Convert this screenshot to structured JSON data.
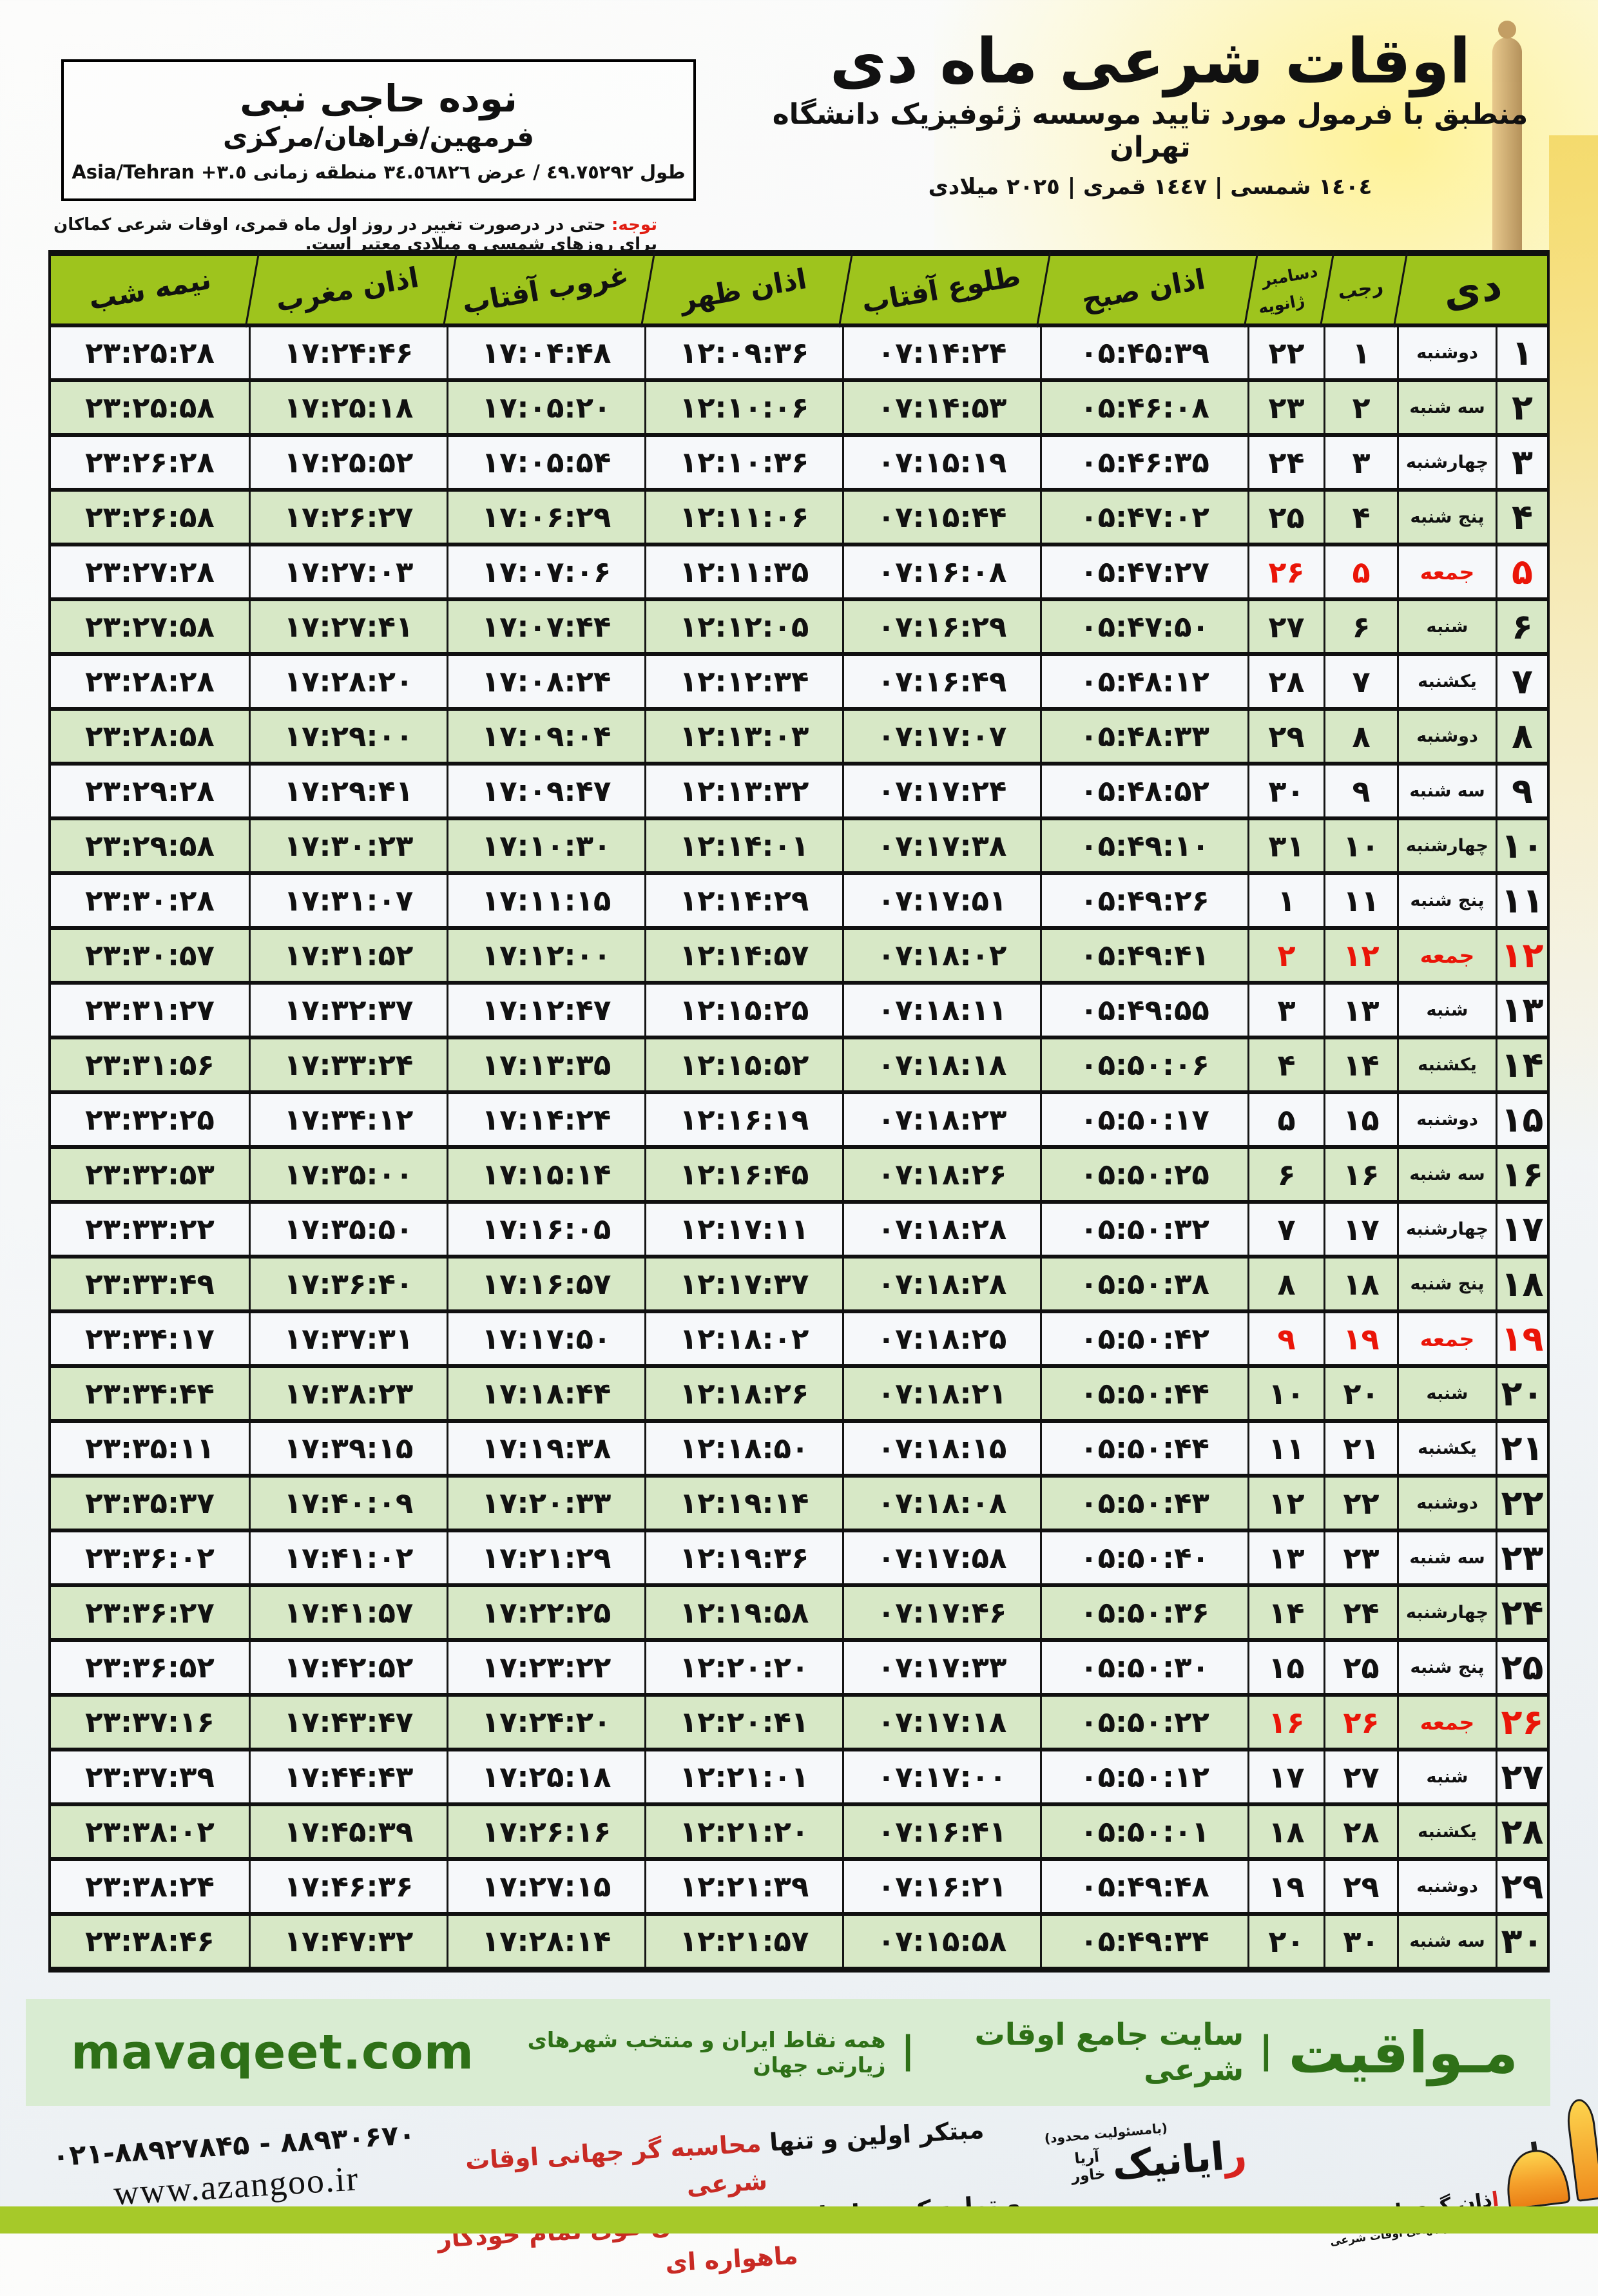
{
  "header": {
    "title": "اوقات شرعی ماه دی",
    "subtitle": "منطبق با فرمول مورد تایید موسسه ژئوفیزیک دانشگاه تهران",
    "years": "١٤٠٤ شمسی | ١٤٤٧ قمری | ٢٠٢٥ میلادی",
    "location": {
      "name": "نوده حاجی نبی",
      "region": "فرمهین/فراهان/مرکزی",
      "coords": "طول ٤٩.٧٥٢٩٢ / عرض ٣٤.٥٦٨٢٦ منطقه زمانی ٣.٥+ Asia/Tehran"
    },
    "notice_label": "توجه:",
    "notice_text": " حتی در درصورت تغییر در روز اول ماه قمری، اوقات شرعی کماکان برای روزهای شمسی و میلادی معتبر است."
  },
  "table": {
    "columns": {
      "day": "دی",
      "rajab": "رجب",
      "greg_top": "دسامبر",
      "greg_bottom": "ژانویه",
      "fajr": "اذان صبح",
      "sunrise": "طلوع آفتاب",
      "dhuhr": "اذان ظهر",
      "sunset": "غروب آفتاب",
      "maghrib": "اذان مغرب",
      "midnight": "نیمه شب"
    },
    "rows": [
      {
        "day": "۱",
        "weekday": "دوشنبه",
        "rajab": "۱",
        "greg": "۲۲",
        "fajr": "۰۵:۴۵:۳۹",
        "sunrise": "۰۷:۱۴:۲۴",
        "dhuhr": "۱۲:۰۹:۳۶",
        "sunset": "۱۷:۰۴:۴۸",
        "maghrib": "۱۷:۲۴:۴۶",
        "midnight": "۲۳:۲۵:۲۸",
        "friday": false
      },
      {
        "day": "۲",
        "weekday": "سه شنبه",
        "rajab": "۲",
        "greg": "۲۳",
        "fajr": "۰۵:۴۶:۰۸",
        "sunrise": "۰۷:۱۴:۵۳",
        "dhuhr": "۱۲:۱۰:۰۶",
        "sunset": "۱۷:۰۵:۲۰",
        "maghrib": "۱۷:۲۵:۱۸",
        "midnight": "۲۳:۲۵:۵۸",
        "friday": false
      },
      {
        "day": "۳",
        "weekday": "چهارشنبه",
        "rajab": "۳",
        "greg": "۲۴",
        "fajr": "۰۵:۴۶:۳۵",
        "sunrise": "۰۷:۱۵:۱۹",
        "dhuhr": "۱۲:۱۰:۳۶",
        "sunset": "۱۷:۰۵:۵۴",
        "maghrib": "۱۷:۲۵:۵۲",
        "midnight": "۲۳:۲۶:۲۸",
        "friday": false
      },
      {
        "day": "۴",
        "weekday": "پنج شنبه",
        "rajab": "۴",
        "greg": "۲۵",
        "fajr": "۰۵:۴۷:۰۲",
        "sunrise": "۰۷:۱۵:۴۴",
        "dhuhr": "۱۲:۱۱:۰۶",
        "sunset": "۱۷:۰۶:۲۹",
        "maghrib": "۱۷:۲۶:۲۷",
        "midnight": "۲۳:۲۶:۵۸",
        "friday": false
      },
      {
        "day": "۵",
        "weekday": "جمعه",
        "rajab": "۵",
        "greg": "۲۶",
        "fajr": "۰۵:۴۷:۲۷",
        "sunrise": "۰۷:۱۶:۰۸",
        "dhuhr": "۱۲:۱۱:۳۵",
        "sunset": "۱۷:۰۷:۰۶",
        "maghrib": "۱۷:۲۷:۰۳",
        "midnight": "۲۳:۲۷:۲۸",
        "friday": true
      },
      {
        "day": "۶",
        "weekday": "شنبه",
        "rajab": "۶",
        "greg": "۲۷",
        "fajr": "۰۵:۴۷:۵۰",
        "sunrise": "۰۷:۱۶:۲۹",
        "dhuhr": "۱۲:۱۲:۰۵",
        "sunset": "۱۷:۰۷:۴۴",
        "maghrib": "۱۷:۲۷:۴۱",
        "midnight": "۲۳:۲۷:۵۸",
        "friday": false
      },
      {
        "day": "۷",
        "weekday": "یکشنبه",
        "rajab": "۷",
        "greg": "۲۸",
        "fajr": "۰۵:۴۸:۱۲",
        "sunrise": "۰۷:۱۶:۴۹",
        "dhuhr": "۱۲:۱۲:۳۴",
        "sunset": "۱۷:۰۸:۲۴",
        "maghrib": "۱۷:۲۸:۲۰",
        "midnight": "۲۳:۲۸:۲۸",
        "friday": false
      },
      {
        "day": "۸",
        "weekday": "دوشنبه",
        "rajab": "۸",
        "greg": "۲۹",
        "fajr": "۰۵:۴۸:۳۳",
        "sunrise": "۰۷:۱۷:۰۷",
        "dhuhr": "۱۲:۱۳:۰۳",
        "sunset": "۱۷:۰۹:۰۴",
        "maghrib": "۱۷:۲۹:۰۰",
        "midnight": "۲۳:۲۸:۵۸",
        "friday": false
      },
      {
        "day": "۹",
        "weekday": "سه شنبه",
        "rajab": "۹",
        "greg": "۳۰",
        "fajr": "۰۵:۴۸:۵۲",
        "sunrise": "۰۷:۱۷:۲۴",
        "dhuhr": "۱۲:۱۳:۳۲",
        "sunset": "۱۷:۰۹:۴۷",
        "maghrib": "۱۷:۲۹:۴۱",
        "midnight": "۲۳:۲۹:۲۸",
        "friday": false
      },
      {
        "day": "۱۰",
        "weekday": "چهارشنبه",
        "rajab": "۱۰",
        "greg": "۳۱",
        "fajr": "۰۵:۴۹:۱۰",
        "sunrise": "۰۷:۱۷:۳۸",
        "dhuhr": "۱۲:۱۴:۰۱",
        "sunset": "۱۷:۱۰:۳۰",
        "maghrib": "۱۷:۳۰:۲۳",
        "midnight": "۲۳:۲۹:۵۸",
        "friday": false
      },
      {
        "day": "۱۱",
        "weekday": "پنج شنبه",
        "rajab": "۱۱",
        "greg": "۱",
        "fajr": "۰۵:۴۹:۲۶",
        "sunrise": "۰۷:۱۷:۵۱",
        "dhuhr": "۱۲:۱۴:۲۹",
        "sunset": "۱۷:۱۱:۱۵",
        "maghrib": "۱۷:۳۱:۰۷",
        "midnight": "۲۳:۳۰:۲۸",
        "friday": false
      },
      {
        "day": "۱۲",
        "weekday": "جمعه",
        "rajab": "۱۲",
        "greg": "۲",
        "fajr": "۰۵:۴۹:۴۱",
        "sunrise": "۰۷:۱۸:۰۲",
        "dhuhr": "۱۲:۱۴:۵۷",
        "sunset": "۱۷:۱۲:۰۰",
        "maghrib": "۱۷:۳۱:۵۲",
        "midnight": "۲۳:۳۰:۵۷",
        "friday": true
      },
      {
        "day": "۱۳",
        "weekday": "شنبه",
        "rajab": "۱۳",
        "greg": "۳",
        "fajr": "۰۵:۴۹:۵۵",
        "sunrise": "۰۷:۱۸:۱۱",
        "dhuhr": "۱۲:۱۵:۲۵",
        "sunset": "۱۷:۱۲:۴۷",
        "maghrib": "۱۷:۳۲:۳۷",
        "midnight": "۲۳:۳۱:۲۷",
        "friday": false
      },
      {
        "day": "۱۴",
        "weekday": "یکشنبه",
        "rajab": "۱۴",
        "greg": "۴",
        "fajr": "۰۵:۵۰:۰۶",
        "sunrise": "۰۷:۱۸:۱۸",
        "dhuhr": "۱۲:۱۵:۵۲",
        "sunset": "۱۷:۱۳:۳۵",
        "maghrib": "۱۷:۳۳:۲۴",
        "midnight": "۲۳:۳۱:۵۶",
        "friday": false
      },
      {
        "day": "۱۵",
        "weekday": "دوشنبه",
        "rajab": "۱۵",
        "greg": "۵",
        "fajr": "۰۵:۵۰:۱۷",
        "sunrise": "۰۷:۱۸:۲۳",
        "dhuhr": "۱۲:۱۶:۱۹",
        "sunset": "۱۷:۱۴:۲۴",
        "maghrib": "۱۷:۳۴:۱۲",
        "midnight": "۲۳:۳۲:۲۵",
        "friday": false
      },
      {
        "day": "۱۶",
        "weekday": "سه شنبه",
        "rajab": "۱۶",
        "greg": "۶",
        "fajr": "۰۵:۵۰:۲۵",
        "sunrise": "۰۷:۱۸:۲۶",
        "dhuhr": "۱۲:۱۶:۴۵",
        "sunset": "۱۷:۱۵:۱۴",
        "maghrib": "۱۷:۳۵:۰۰",
        "midnight": "۲۳:۳۲:۵۳",
        "friday": false
      },
      {
        "day": "۱۷",
        "weekday": "چهارشنبه",
        "rajab": "۱۷",
        "greg": "۷",
        "fajr": "۰۵:۵۰:۳۲",
        "sunrise": "۰۷:۱۸:۲۸",
        "dhuhr": "۱۲:۱۷:۱۱",
        "sunset": "۱۷:۱۶:۰۵",
        "maghrib": "۱۷:۳۵:۵۰",
        "midnight": "۲۳:۳۳:۲۲",
        "friday": false
      },
      {
        "day": "۱۸",
        "weekday": "پنج شنبه",
        "rajab": "۱۸",
        "greg": "۸",
        "fajr": "۰۵:۵۰:۳۸",
        "sunrise": "۰۷:۱۸:۲۸",
        "dhuhr": "۱۲:۱۷:۳۷",
        "sunset": "۱۷:۱۶:۵۷",
        "maghrib": "۱۷:۳۶:۴۰",
        "midnight": "۲۳:۳۳:۴۹",
        "friday": false
      },
      {
        "day": "۱۹",
        "weekday": "جمعه",
        "rajab": "۱۹",
        "greg": "۹",
        "fajr": "۰۵:۵۰:۴۲",
        "sunrise": "۰۷:۱۸:۲۵",
        "dhuhr": "۱۲:۱۸:۰۲",
        "sunset": "۱۷:۱۷:۵۰",
        "maghrib": "۱۷:۳۷:۳۱",
        "midnight": "۲۳:۳۴:۱۷",
        "friday": true
      },
      {
        "day": "۲۰",
        "weekday": "شنبه",
        "rajab": "۲۰",
        "greg": "۱۰",
        "fajr": "۰۵:۵۰:۴۴",
        "sunrise": "۰۷:۱۸:۲۱",
        "dhuhr": "۱۲:۱۸:۲۶",
        "sunset": "۱۷:۱۸:۴۴",
        "maghrib": "۱۷:۳۸:۲۳",
        "midnight": "۲۳:۳۴:۴۴",
        "friday": false
      },
      {
        "day": "۲۱",
        "weekday": "یکشنبه",
        "rajab": "۲۱",
        "greg": "۱۱",
        "fajr": "۰۵:۵۰:۴۴",
        "sunrise": "۰۷:۱۸:۱۵",
        "dhuhr": "۱۲:۱۸:۵۰",
        "sunset": "۱۷:۱۹:۳۸",
        "maghrib": "۱۷:۳۹:۱۵",
        "midnight": "۲۳:۳۵:۱۱",
        "friday": false
      },
      {
        "day": "۲۲",
        "weekday": "دوشنبه",
        "rajab": "۲۲",
        "greg": "۱۲",
        "fajr": "۰۵:۵۰:۴۳",
        "sunrise": "۰۷:۱۸:۰۸",
        "dhuhr": "۱۲:۱۹:۱۴",
        "sunset": "۱۷:۲۰:۳۳",
        "maghrib": "۱۷:۴۰:۰۹",
        "midnight": "۲۳:۳۵:۳۷",
        "friday": false
      },
      {
        "day": "۲۳",
        "weekday": "سه شنبه",
        "rajab": "۲۳",
        "greg": "۱۳",
        "fajr": "۰۵:۵۰:۴۰",
        "sunrise": "۰۷:۱۷:۵۸",
        "dhuhr": "۱۲:۱۹:۳۶",
        "sunset": "۱۷:۲۱:۲۹",
        "maghrib": "۱۷:۴۱:۰۲",
        "midnight": "۲۳:۳۶:۰۲",
        "friday": false
      },
      {
        "day": "۲۴",
        "weekday": "چهارشنبه",
        "rajab": "۲۴",
        "greg": "۱۴",
        "fajr": "۰۵:۵۰:۳۶",
        "sunrise": "۰۷:۱۷:۴۶",
        "dhuhr": "۱۲:۱۹:۵۸",
        "sunset": "۱۷:۲۲:۲۵",
        "maghrib": "۱۷:۴۱:۵۷",
        "midnight": "۲۳:۳۶:۲۷",
        "friday": false
      },
      {
        "day": "۲۵",
        "weekday": "پنج شنبه",
        "rajab": "۲۵",
        "greg": "۱۵",
        "fajr": "۰۵:۵۰:۳۰",
        "sunrise": "۰۷:۱۷:۳۳",
        "dhuhr": "۱۲:۲۰:۲۰",
        "sunset": "۱۷:۲۳:۲۲",
        "maghrib": "۱۷:۴۲:۵۲",
        "midnight": "۲۳:۳۶:۵۲",
        "friday": false
      },
      {
        "day": "۲۶",
        "weekday": "جمعه",
        "rajab": "۲۶",
        "greg": "۱۶",
        "fajr": "۰۵:۵۰:۲۲",
        "sunrise": "۰۷:۱۷:۱۸",
        "dhuhr": "۱۲:۲۰:۴۱",
        "sunset": "۱۷:۲۴:۲۰",
        "maghrib": "۱۷:۴۳:۴۷",
        "midnight": "۲۳:۳۷:۱۶",
        "friday": true
      },
      {
        "day": "۲۷",
        "weekday": "شنبه",
        "rajab": "۲۷",
        "greg": "۱۷",
        "fajr": "۰۵:۵۰:۱۲",
        "sunrise": "۰۷:۱۷:۰۰",
        "dhuhr": "۱۲:۲۱:۰۱",
        "sunset": "۱۷:۲۵:۱۸",
        "maghrib": "۱۷:۴۴:۴۳",
        "midnight": "۲۳:۳۷:۳۹",
        "friday": false
      },
      {
        "day": "۲۸",
        "weekday": "یکشنبه",
        "rajab": "۲۸",
        "greg": "۱۸",
        "fajr": "۰۵:۵۰:۰۱",
        "sunrise": "۰۷:۱۶:۴۱",
        "dhuhr": "۱۲:۲۱:۲۰",
        "sunset": "۱۷:۲۶:۱۶",
        "maghrib": "۱۷:۴۵:۳۹",
        "midnight": "۲۳:۳۸:۰۲",
        "friday": false
      },
      {
        "day": "۲۹",
        "weekday": "دوشنبه",
        "rajab": "۲۹",
        "greg": "۱۹",
        "fajr": "۰۵:۴۹:۴۸",
        "sunrise": "۰۷:۱۶:۲۱",
        "dhuhr": "۱۲:۲۱:۳۹",
        "sunset": "۱۷:۲۷:۱۵",
        "maghrib": "۱۷:۴۶:۳۶",
        "midnight": "۲۳:۳۸:۲۴",
        "friday": false
      },
      {
        "day": "۳۰",
        "weekday": "سه شنبه",
        "rajab": "۳۰",
        "greg": "۲۰",
        "fajr": "۰۵:۴۹:۳۴",
        "sunrise": "۰۷:۱۵:۵۸",
        "dhuhr": "۱۲:۲۱:۵۷",
        "sunset": "۱۷:۲۸:۱۴",
        "maghrib": "۱۷:۴۷:۳۲",
        "midnight": "۲۳:۳۸:۴۶",
        "friday": false
      }
    ]
  },
  "footer": {
    "site_bar": {
      "brand": "مـواقیت",
      "separator": "|",
      "tagline": "سایت جامع اوقات شرعی",
      "coverage": "همه نقاط ایران و منتخب شهرهای زیارتی جهان",
      "url": "mavaqeet.com"
    },
    "phone": "۰۲۱-۸۸۹۲۷۸۴۵ - ۸۸۹۳۰۶۷۰",
    "website": "www.azangoo.ir",
    "slogan1_black": "مبتکر اولین و تنها ",
    "slogan1_red": "محاسبه گر جهانی اوقات شرعی",
    "slogan2_black": "و تولید کننده انواع ",
    "slogan2_red": "دستگاه اذان گوی تمام خودکار ماهواره ای",
    "rayanik": {
      "note": "(بامسئولیت محدود)",
      "name_first": "ر",
      "name_rest": "ایانیک",
      "small_top": "آریا",
      "small_bottom": "خاور"
    },
    "azangoo": {
      "icon": "mosque-dome-minaret-icon",
      "title_first": "ا",
      "title_rest": "ذان گوی اتوماتیک",
      "subtitle": "محاسبه گر جهانی اوقات شرعی",
      "wordmark_first": "a",
      "wordmark_rest": "zangoo"
    }
  },
  "colors": {
    "header_green": "#9ec41d",
    "row_green": "#d7e8c6",
    "row_light": "#f6f8fa",
    "friday_red": "#ea1508",
    "footer_bar_bg": "#d9ecd2",
    "footer_text_green": "#2e7017",
    "bottom_bar_green": "#a6c929",
    "logo_orange": "#f08a1d"
  }
}
